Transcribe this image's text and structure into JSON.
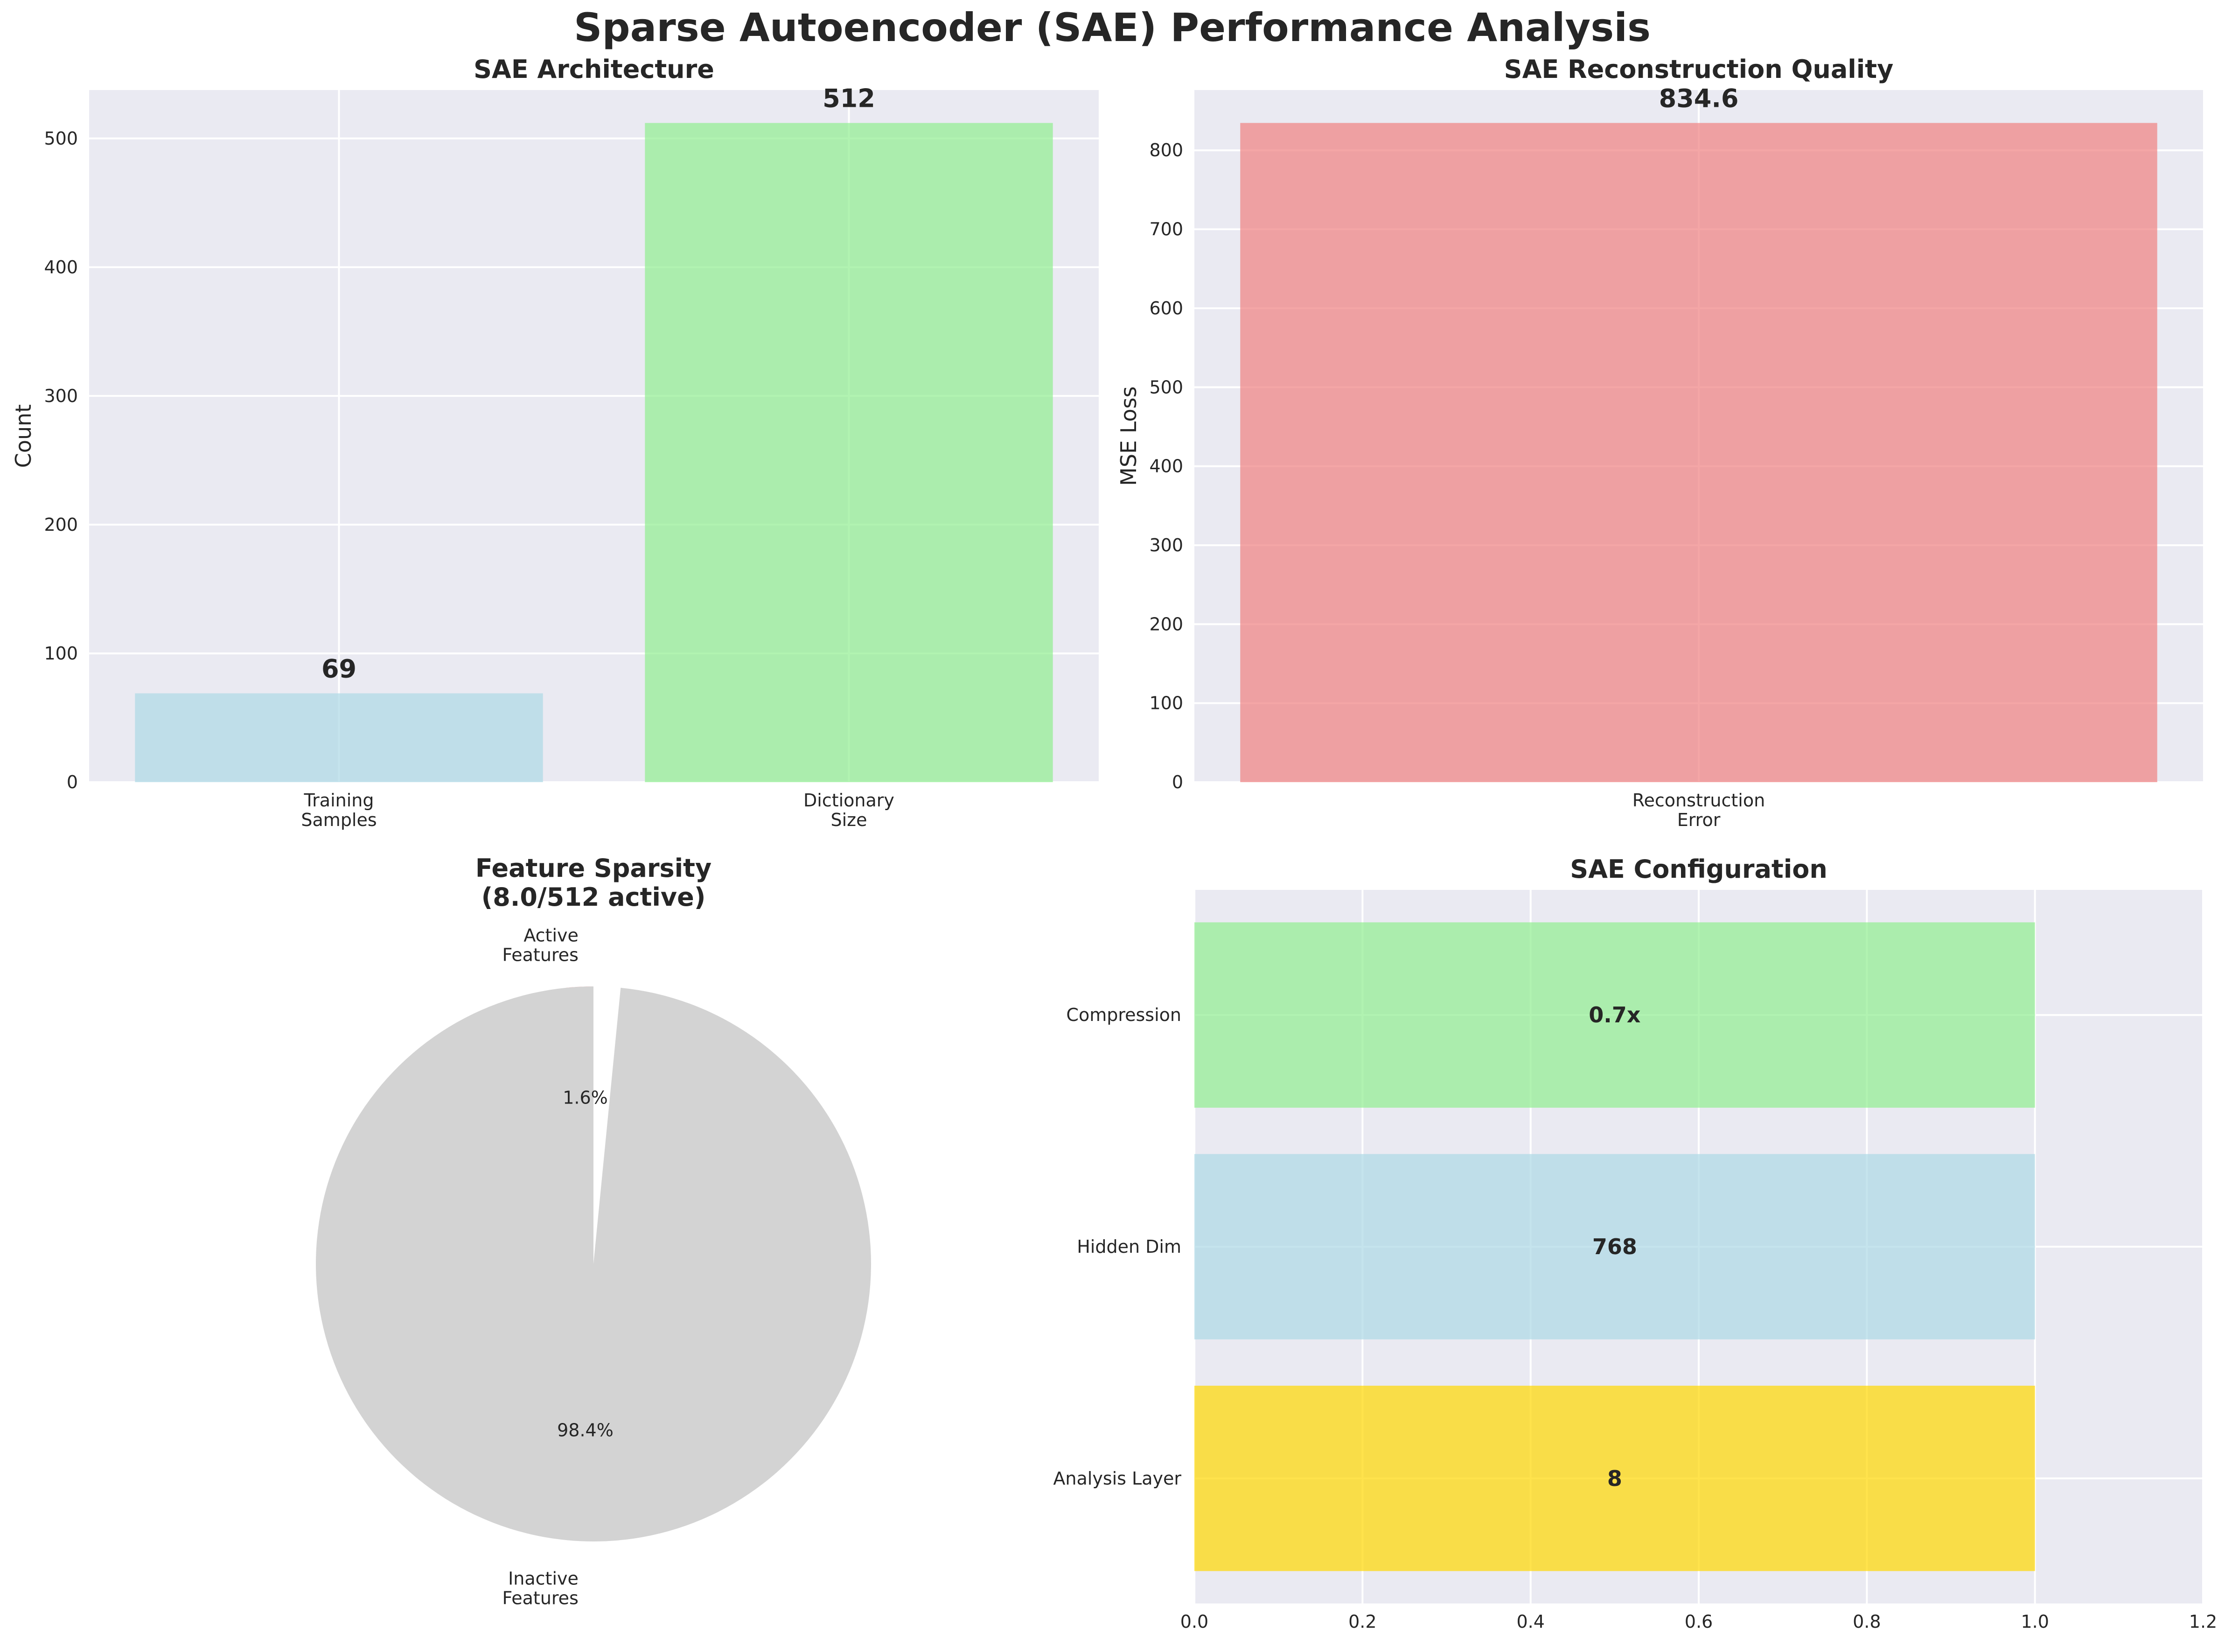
{
  "title": "Sparse Autoencoder (SAE) Performance Analysis",
  "colors": {
    "background": "#eaeaf2",
    "grid": "#ffffff",
    "lightblue": "#add8e6",
    "lightgreen": "#90ee90",
    "salmon": "#f08080",
    "gold": "#ffd700",
    "lightgray": "#d3d3d3"
  },
  "chart_data": [
    {
      "id": "architecture",
      "type": "bar",
      "title": "SAE Architecture",
      "ylabel": "Count",
      "categories": [
        "Training\nSamples",
        "Dictionary\nSize"
      ],
      "values": [
        69,
        512
      ],
      "value_labels": [
        "69",
        "512"
      ],
      "colors": [
        "#add8e6",
        "#90ee90"
      ],
      "ylim": [
        0,
        537.6
      ],
      "yticks": [
        0,
        100,
        200,
        300,
        400,
        500
      ],
      "grid": true
    },
    {
      "id": "reconstruction",
      "type": "bar",
      "title": "SAE Reconstruction Quality",
      "ylabel": "MSE Loss",
      "categories": [
        "Reconstruction\nError"
      ],
      "values": [
        834.6
      ],
      "value_labels": [
        "834.6"
      ],
      "colors": [
        "#f08080"
      ],
      "ylim": [
        0,
        876.3
      ],
      "yticks": [
        0,
        100,
        200,
        300,
        400,
        500,
        600,
        700,
        800
      ],
      "grid": true
    },
    {
      "id": "sparsity",
      "type": "pie",
      "title": "Feature Sparsity\n(8.0/512 active)",
      "labels": [
        "Active\nFeatures",
        "Inactive\nFeatures"
      ],
      "values": [
        8,
        504
      ],
      "percent_labels": [
        "1.6%",
        "98.4%"
      ],
      "colors": [
        "#f08080",
        "#d3d3d3"
      ],
      "start_angle": 90
    },
    {
      "id": "configuration",
      "type": "bar",
      "orientation": "horizontal",
      "title": "SAE Configuration",
      "categories": [
        "Analysis Layer",
        "Hidden Dim",
        "Compression"
      ],
      "values": [
        1,
        1,
        1
      ],
      "value_labels": [
        "8",
        "768",
        "0.7x"
      ],
      "colors": [
        "#ffd700",
        "#add8e6",
        "#90ee90"
      ],
      "xlim": [
        0,
        1.2
      ],
      "xticks": [
        "0.0",
        "0.2",
        "0.4",
        "0.6",
        "0.8",
        "1.0",
        "1.2"
      ],
      "grid": true
    }
  ]
}
